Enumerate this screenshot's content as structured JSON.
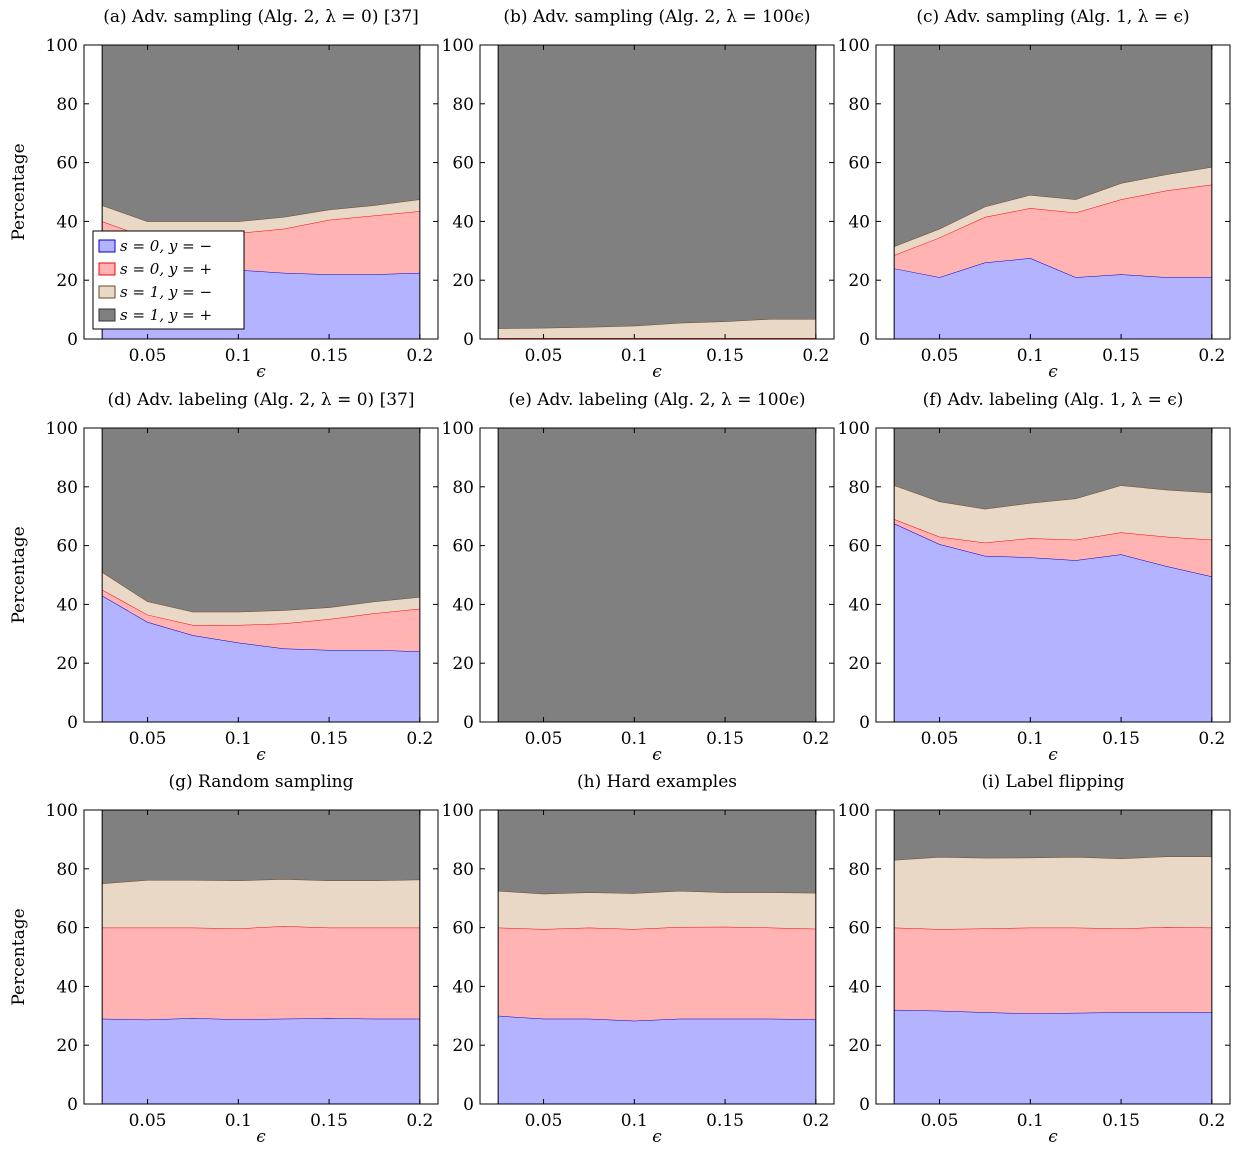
{
  "legend": {
    "entries": [
      "s = 0, y = −",
      "s = 0, y = +",
      "s = 1, y = −",
      "s = 1, y = +"
    ],
    "placement": "inside panel (a), lower-left"
  },
  "chart_data": [
    {
      "id": "a",
      "type": "area",
      "stacked": true,
      "title": "(a) Adv. sampling (Alg. 2, λ = 0) [37]",
      "xlabel": "ϵ",
      "ylabel": "Percentage",
      "xlim": [
        0.015,
        0.21
      ],
      "ylim": [
        0,
        100
      ],
      "xticks": [
        "0.05",
        "0.1",
        "0.15",
        "0.2"
      ],
      "yticks": [
        "0",
        "20",
        "40",
        "60",
        "80",
        "100"
      ],
      "x": [
        0.025,
        0.05,
        0.075,
        0.1,
        0.125,
        0.15,
        0.175,
        0.2
      ],
      "series": [
        {
          "name": "s = 0, y = −",
          "values": [
            27,
            25,
            24,
            23.5,
            22.5,
            22,
            22,
            22.5
          ],
          "color": "#b3b3ff",
          "edge": "#0000cc"
        },
        {
          "name": "s = 0, y = +",
          "values": [
            13,
            9.5,
            11,
            12.5,
            15,
            18.5,
            20,
            21
          ],
          "color": "#ffb3b3",
          "edge": "#ff0000"
        },
        {
          "name": "s = 1, y = −",
          "values": [
            5.5,
            5.5,
            5,
            4,
            4,
            3.5,
            3.5,
            4
          ],
          "color": "#ead8c7",
          "edge": "#6b4a2a"
        },
        {
          "name": "s = 1, y = +",
          "values": [
            54.5,
            60,
            60,
            60,
            58.5,
            56,
            54.5,
            52.5
          ],
          "color": "#808080",
          "edge": "#333333"
        }
      ]
    },
    {
      "id": "b",
      "type": "area",
      "stacked": true,
      "title": "(b) Adv. sampling (Alg. 2, λ = 100ϵ)",
      "xlabel": "ϵ",
      "ylabel": "",
      "xlim": [
        0.015,
        0.21
      ],
      "ylim": [
        0,
        100
      ],
      "xticks": [
        "0.05",
        "0.1",
        "0.15",
        "0.2"
      ],
      "yticks": [
        "0",
        "20",
        "40",
        "60",
        "80",
        "100"
      ],
      "x": [
        0.025,
        0.05,
        0.075,
        0.1,
        0.125,
        0.15,
        0.175,
        0.2
      ],
      "series": [
        {
          "name": "s = 0, y = −",
          "values": [
            0,
            0,
            0,
            0,
            0,
            0,
            0,
            0
          ],
          "color": "#b3b3ff",
          "edge": "#0000cc"
        },
        {
          "name": "s = 0, y = +",
          "values": [
            0.3,
            0.3,
            0.3,
            0.3,
            0.3,
            0.3,
            0.3,
            0.3
          ],
          "color": "#ffb3b3",
          "edge": "#ff0000"
        },
        {
          "name": "s = 1, y = −",
          "values": [
            3.3,
            3.5,
            3.8,
            4.2,
            5.2,
            5.7,
            6.5,
            6.5
          ],
          "color": "#ead8c7",
          "edge": "#6b4a2a"
        },
        {
          "name": "s = 1, y = +",
          "values": [
            96.4,
            96.2,
            95.9,
            95.5,
            94.5,
            94,
            93.2,
            93.2
          ],
          "color": "#808080",
          "edge": "#333333"
        }
      ]
    },
    {
      "id": "c",
      "type": "area",
      "stacked": true,
      "title": "(c) Adv. sampling (Alg. 1, λ = ϵ)",
      "xlabel": "ϵ",
      "ylabel": "",
      "xlim": [
        0.015,
        0.21
      ],
      "ylim": [
        0,
        100
      ],
      "xticks": [
        "0.05",
        "0.1",
        "0.15",
        "0.2"
      ],
      "yticks": [
        "0",
        "20",
        "40",
        "60",
        "80",
        "100"
      ],
      "x": [
        0.025,
        0.05,
        0.075,
        0.1,
        0.125,
        0.15,
        0.175,
        0.2
      ],
      "series": [
        {
          "name": "s = 0, y = −",
          "values": [
            24,
            21,
            26,
            27.5,
            21,
            22,
            21,
            21
          ],
          "color": "#b3b3ff",
          "edge": "#0000cc"
        },
        {
          "name": "s = 0, y = +",
          "values": [
            4.5,
            13.5,
            15.5,
            17,
            22,
            25.5,
            29.5,
            31.5
          ],
          "color": "#ffb3b3",
          "edge": "#ff0000"
        },
        {
          "name": "s = 1, y = −",
          "values": [
            3,
            3,
            3.5,
            4.5,
            4.5,
            5.5,
            5.5,
            6
          ],
          "color": "#ead8c7",
          "edge": "#6b4a2a"
        },
        {
          "name": "s = 1, y = +",
          "values": [
            68.5,
            62.5,
            55,
            51,
            52.5,
            47,
            44,
            41.5
          ],
          "color": "#808080",
          "edge": "#333333"
        }
      ]
    },
    {
      "id": "d",
      "type": "area",
      "stacked": true,
      "title": "(d) Adv. labeling (Alg. 2, λ = 0) [37]",
      "xlabel": "ϵ",
      "ylabel": "Percentage",
      "xlim": [
        0.015,
        0.21
      ],
      "ylim": [
        0,
        100
      ],
      "xticks": [
        "0.05",
        "0.1",
        "0.15",
        "0.2"
      ],
      "yticks": [
        "0",
        "20",
        "40",
        "60",
        "80",
        "100"
      ],
      "x": [
        0.025,
        0.05,
        0.075,
        0.1,
        0.125,
        0.15,
        0.175,
        0.2
      ],
      "series": [
        {
          "name": "s = 0, y = −",
          "values": [
            43,
            34,
            29.5,
            27,
            25,
            24.5,
            24.5,
            24
          ],
          "color": "#b3b3ff",
          "edge": "#0000cc"
        },
        {
          "name": "s = 0, y = +",
          "values": [
            2,
            2.5,
            3.5,
            6,
            8.5,
            10.5,
            12.5,
            14.5
          ],
          "color": "#ffb3b3",
          "edge": "#ff0000"
        },
        {
          "name": "s = 1, y = −",
          "values": [
            6,
            4.5,
            4.5,
            4.5,
            4.5,
            4,
            4,
            4
          ],
          "color": "#ead8c7",
          "edge": "#6b4a2a"
        },
        {
          "name": "s = 1, y = +",
          "values": [
            49,
            59,
            62.5,
            62.5,
            62,
            61,
            59,
            57.5
          ],
          "color": "#808080",
          "edge": "#333333"
        }
      ]
    },
    {
      "id": "e",
      "type": "area",
      "stacked": true,
      "title": "(e) Adv. labeling (Alg. 2, λ = 100ϵ)",
      "xlabel": "ϵ",
      "ylabel": "",
      "xlim": [
        0.015,
        0.21
      ],
      "ylim": [
        0,
        100
      ],
      "xticks": [
        "0.05",
        "0.1",
        "0.15",
        "0.2"
      ],
      "yticks": [
        "0",
        "20",
        "40",
        "60",
        "80",
        "100"
      ],
      "x": [
        0.025,
        0.05,
        0.075,
        0.1,
        0.125,
        0.15,
        0.175,
        0.2
      ],
      "series": [
        {
          "name": "s = 0, y = −",
          "values": [
            0,
            0,
            0,
            0,
            0,
            0,
            0,
            0
          ],
          "color": "#b3b3ff",
          "edge": "#0000cc"
        },
        {
          "name": "s = 0, y = +",
          "values": [
            0,
            0,
            0,
            0,
            0,
            0,
            0,
            0
          ],
          "color": "#ffb3b3",
          "edge": "#ff0000"
        },
        {
          "name": "s = 1, y = −",
          "values": [
            0,
            0,
            0,
            0,
            0,
            0,
            0,
            0
          ],
          "color": "#ead8c7",
          "edge": "#6b4a2a"
        },
        {
          "name": "s = 1, y = +",
          "values": [
            100,
            100,
            100,
            100,
            100,
            100,
            100,
            100
          ],
          "color": "#808080",
          "edge": "#333333"
        }
      ]
    },
    {
      "id": "f",
      "type": "area",
      "stacked": true,
      "title": "(f) Adv. labeling (Alg. 1, λ = ϵ)",
      "xlabel": "ϵ",
      "ylabel": "",
      "xlim": [
        0.015,
        0.21
      ],
      "ylim": [
        0,
        100
      ],
      "xticks": [
        "0.05",
        "0.1",
        "0.15",
        "0.2"
      ],
      "yticks": [
        "0",
        "20",
        "40",
        "60",
        "80",
        "100"
      ],
      "x": [
        0.025,
        0.05,
        0.075,
        0.1,
        0.125,
        0.15,
        0.175,
        0.2
      ],
      "series": [
        {
          "name": "s = 0, y = −",
          "values": [
            67.5,
            60.5,
            56.5,
            56,
            55,
            57,
            53,
            49.5
          ],
          "color": "#b3b3ff",
          "edge": "#0000cc"
        },
        {
          "name": "s = 0, y = +",
          "values": [
            1.5,
            2.5,
            4.5,
            6.5,
            7,
            7.5,
            10,
            12.5
          ],
          "color": "#ffb3b3",
          "edge": "#ff0000"
        },
        {
          "name": "s = 1, y = −",
          "values": [
            11.5,
            12,
            11.5,
            12,
            14,
            16,
            16,
            16
          ],
          "color": "#ead8c7",
          "edge": "#6b4a2a"
        },
        {
          "name": "s = 1, y = +",
          "values": [
            19.5,
            25,
            27.5,
            25.5,
            24,
            19.5,
            21,
            22
          ],
          "color": "#808080",
          "edge": "#333333"
        }
      ]
    },
    {
      "id": "g",
      "type": "area",
      "stacked": true,
      "title": "(g) Random sampling",
      "xlabel": "ϵ",
      "ylabel": "Percentage",
      "xlim": [
        0.015,
        0.21
      ],
      "ylim": [
        0,
        100
      ],
      "xticks": [
        "0.05",
        "0.1",
        "0.15",
        "0.2"
      ],
      "yticks": [
        "0",
        "20",
        "40",
        "60",
        "80",
        "100"
      ],
      "x": [
        0.025,
        0.05,
        0.075,
        0.1,
        0.125,
        0.15,
        0.175,
        0.2
      ],
      "series": [
        {
          "name": "s = 0, y = −",
          "values": [
            29,
            28.7,
            29.2,
            28.8,
            29,
            29.2,
            29,
            29
          ],
          "color": "#b3b3ff",
          "edge": "#0000cc"
        },
        {
          "name": "s = 0, y = +",
          "values": [
            31,
            31.3,
            30.8,
            30.9,
            31.5,
            30.8,
            31,
            31
          ],
          "color": "#ffb3b3",
          "edge": "#ff0000"
        },
        {
          "name": "s = 1, y = −",
          "values": [
            15,
            16.2,
            16.2,
            16.3,
            16,
            16,
            16,
            16.3
          ],
          "color": "#ead8c7",
          "edge": "#6b4a2a"
        },
        {
          "name": "s = 1, y = +",
          "values": [
            25,
            23.8,
            23.8,
            24,
            23.5,
            24,
            24,
            23.7
          ],
          "color": "#808080",
          "edge": "#333333"
        }
      ]
    },
    {
      "id": "h",
      "type": "area",
      "stacked": true,
      "title": "(h) Hard examples",
      "xlabel": "ϵ",
      "ylabel": "",
      "xlim": [
        0.015,
        0.21
      ],
      "ylim": [
        0,
        100
      ],
      "xticks": [
        "0.05",
        "0.1",
        "0.15",
        "0.2"
      ],
      "yticks": [
        "0",
        "20",
        "40",
        "60",
        "80",
        "100"
      ],
      "x": [
        0.025,
        0.05,
        0.075,
        0.1,
        0.125,
        0.15,
        0.175,
        0.2
      ],
      "series": [
        {
          "name": "s = 0, y = −",
          "values": [
            30,
            29,
            29,
            28.3,
            29,
            29,
            29,
            28.8
          ],
          "color": "#b3b3ff",
          "edge": "#0000cc"
        },
        {
          "name": "s = 0, y = +",
          "values": [
            30,
            30.5,
            31,
            31.2,
            31.2,
            31.3,
            31,
            30.8
          ],
          "color": "#ffb3b3",
          "edge": "#ff0000"
        },
        {
          "name": "s = 1, y = −",
          "values": [
            12.5,
            12,
            12,
            12.2,
            12.3,
            11.7,
            12,
            12.2
          ],
          "color": "#ead8c7",
          "edge": "#6b4a2a"
        },
        {
          "name": "s = 1, y = +",
          "values": [
            27.5,
            28.5,
            28,
            28.3,
            27.5,
            28,
            28,
            28.2
          ],
          "color": "#808080",
          "edge": "#333333"
        }
      ]
    },
    {
      "id": "i",
      "type": "area",
      "stacked": true,
      "title": "(i) Label flipping",
      "xlabel": "ϵ",
      "ylabel": "",
      "xlim": [
        0.015,
        0.21
      ],
      "ylim": [
        0,
        100
      ],
      "xticks": [
        "0.05",
        "0.1",
        "0.15",
        "0.2"
      ],
      "yticks": [
        "0",
        "20",
        "40",
        "60",
        "80",
        "100"
      ],
      "x": [
        0.025,
        0.05,
        0.075,
        0.1,
        0.125,
        0.15,
        0.175,
        0.2
      ],
      "series": [
        {
          "name": "s = 0, y = −",
          "values": [
            32,
            31.7,
            31.2,
            30.8,
            31,
            31.2,
            31.2,
            31.3
          ],
          "color": "#b3b3ff",
          "edge": "#0000cc"
        },
        {
          "name": "s = 0, y = +",
          "values": [
            28,
            27.8,
            28.5,
            29.2,
            29,
            28.5,
            29,
            28.7
          ],
          "color": "#ffb3b3",
          "edge": "#ff0000"
        },
        {
          "name": "s = 1, y = −",
          "values": [
            23,
            24.5,
            24,
            23.8,
            24,
            23.8,
            24,
            24.2
          ],
          "color": "#ead8c7",
          "edge": "#6b4a2a"
        },
        {
          "name": "s = 1, y = +",
          "values": [
            17,
            16,
            16.3,
            16.2,
            16,
            16.5,
            15.8,
            15.8
          ],
          "color": "#808080",
          "edge": "#333333"
        }
      ]
    }
  ]
}
